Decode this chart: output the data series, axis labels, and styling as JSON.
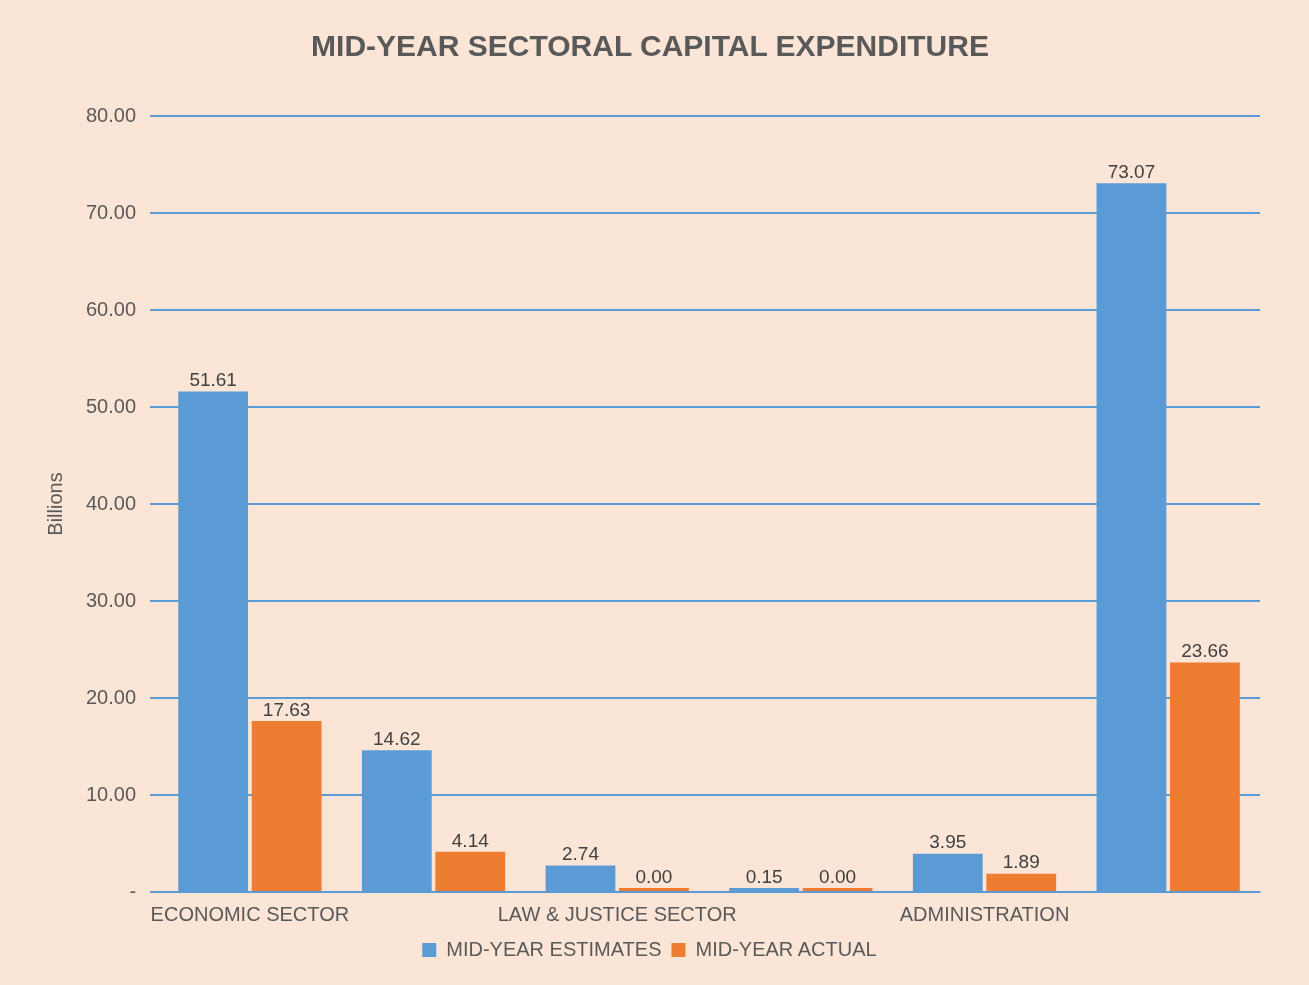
{
  "chart_data": {
    "type": "bar",
    "title": "MID-YEAR SECTORAL CAPITAL EXPENDITURE",
    "ylabel": "Billions",
    "categories": [
      "ECONOMIC SECTOR",
      null,
      "LAW & JUSTICE SECTOR",
      null,
      "ADMINISTRATION",
      null
    ],
    "series": [
      {
        "name": "MID-YEAR ESTIMATES",
        "color": "#5b9bd5",
        "values": [
          51.61,
          14.62,
          2.74,
          0.15,
          3.95,
          73.07
        ],
        "value_labels": [
          "51.61",
          "14.62",
          "2.74",
          "0.15",
          "3.95",
          "73.07"
        ]
      },
      {
        "name": "MID-YEAR ACTUAL",
        "color": "#ed7d31",
        "values": [
          17.63,
          4.14,
          0.0,
          0.0,
          1.89,
          23.66
        ],
        "value_labels": [
          "17.63",
          "4.14",
          "0.00",
          "0.00",
          "1.89",
          "23.66"
        ]
      }
    ],
    "ylim": [
      0,
      80
    ],
    "yticks": [
      {
        "value": 0,
        "label": "-"
      },
      {
        "value": 10,
        "label": "10.00"
      },
      {
        "value": 20,
        "label": "20.00"
      },
      {
        "value": 30,
        "label": "30.00"
      },
      {
        "value": 40,
        "label": "40.00"
      },
      {
        "value": 50,
        "label": "50.00"
      },
      {
        "value": 60,
        "label": "60.00"
      },
      {
        "value": 70,
        "label": "70.00"
      },
      {
        "value": 80,
        "label": "80.00"
      }
    ],
    "grid": "y",
    "legend": "bottom"
  }
}
